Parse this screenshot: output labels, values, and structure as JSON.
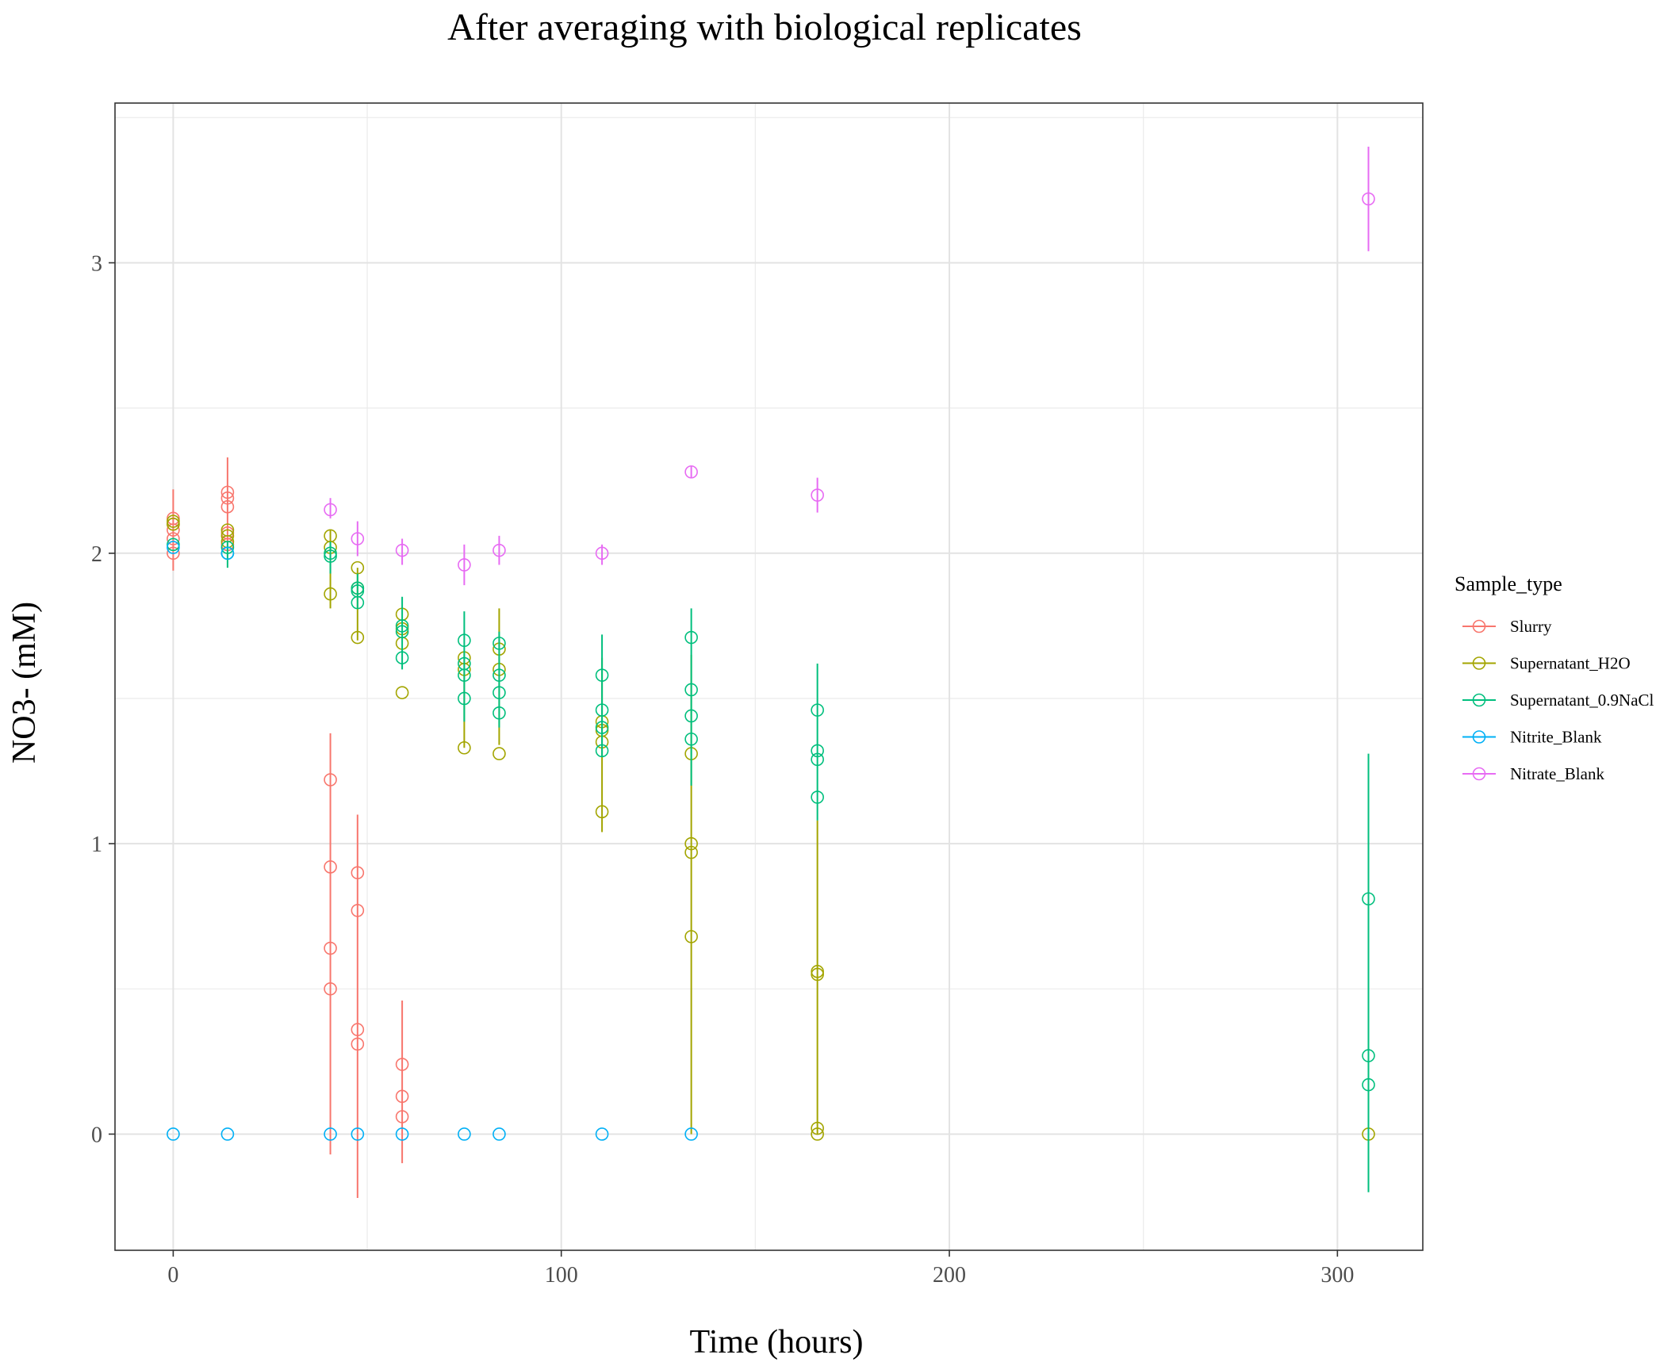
{
  "chart_data": {
    "type": "scatter",
    "title": "After averaging with biological replicates",
    "xlabel": "Time (hours)",
    "ylabel": "NO3- (mM)",
    "xlim": [
      -15,
      322
    ],
    "ylim": [
      -0.4,
      3.55
    ],
    "x_ticks": [
      0,
      100,
      200,
      300
    ],
    "x_tick_labels": [
      "0",
      "100",
      "200",
      "300"
    ],
    "x_minor_ticks": [
      50,
      150,
      250
    ],
    "y_ticks": [
      0,
      1,
      2,
      3
    ],
    "y_tick_labels": [
      "0",
      "1",
      "2",
      "3"
    ],
    "y_minor_ticks": [
      0.5,
      1.5,
      2.5,
      3.5
    ],
    "grid": true,
    "legend_title": "Sample_type",
    "legend_position": "right",
    "series": [
      {
        "name": "Slurry",
        "color": "#F8766D",
        "points": [
          {
            "x": 0,
            "y": 2.0
          },
          {
            "x": 0,
            "y": 2.05
          },
          {
            "x": 0,
            "y": 2.08
          },
          {
            "x": 0,
            "y": 2.1
          },
          {
            "x": 0,
            "y": 2.12
          },
          {
            "x": 14,
            "y": 2.03
          },
          {
            "x": 14,
            "y": 2.07
          },
          {
            "x": 14,
            "y": 2.16
          },
          {
            "x": 14,
            "y": 2.19
          },
          {
            "x": 14,
            "y": 2.21
          },
          {
            "x": 40.5,
            "y": 1.22
          },
          {
            "x": 40.5,
            "y": 0.92
          },
          {
            "x": 40.5,
            "y": 0.64
          },
          {
            "x": 40.5,
            "y": 0.5
          },
          {
            "x": 47.5,
            "y": 0.9
          },
          {
            "x": 47.5,
            "y": 0.77
          },
          {
            "x": 47.5,
            "y": 0.36
          },
          {
            "x": 47.5,
            "y": 0.31
          },
          {
            "x": 59,
            "y": 0.24
          },
          {
            "x": 59,
            "y": 0.13
          },
          {
            "x": 59,
            "y": 0.06
          }
        ],
        "errorbars": [
          {
            "x": 0,
            "low": 1.94,
            "high": 2.22
          },
          {
            "x": 14,
            "low": 2.0,
            "high": 2.33
          },
          {
            "x": 40.5,
            "low": -0.07,
            "high": 1.38
          },
          {
            "x": 47.5,
            "low": -0.22,
            "high": 1.1
          },
          {
            "x": 59,
            "low": -0.1,
            "high": 0.46
          }
        ]
      },
      {
        "name": "Supernatant_H2O",
        "color": "#A3A500",
        "points": [
          {
            "x": 0,
            "y": 2.1
          },
          {
            "x": 0,
            "y": 2.11
          },
          {
            "x": 14,
            "y": 2.04
          },
          {
            "x": 14,
            "y": 2.06
          },
          {
            "x": 14,
            "y": 2.08
          },
          {
            "x": 40.5,
            "y": 2.06
          },
          {
            "x": 40.5,
            "y": 2.02
          },
          {
            "x": 40.5,
            "y": 1.86
          },
          {
            "x": 47.5,
            "y": 1.95
          },
          {
            "x": 47.5,
            "y": 1.88
          },
          {
            "x": 47.5,
            "y": 1.71
          },
          {
            "x": 59,
            "y": 1.79
          },
          {
            "x": 59,
            "y": 1.74
          },
          {
            "x": 59,
            "y": 1.69
          },
          {
            "x": 59,
            "y": 1.52
          },
          {
            "x": 75,
            "y": 1.64
          },
          {
            "x": 75,
            "y": 1.6
          },
          {
            "x": 75,
            "y": 1.33
          },
          {
            "x": 84,
            "y": 1.67
          },
          {
            "x": 84,
            "y": 1.6
          },
          {
            "x": 84,
            "y": 1.31
          },
          {
            "x": 110.5,
            "y": 1.42
          },
          {
            "x": 110.5,
            "y": 1.39
          },
          {
            "x": 110.5,
            "y": 1.35
          },
          {
            "x": 110.5,
            "y": 1.11
          },
          {
            "x": 133.5,
            "y": 1.31
          },
          {
            "x": 133.5,
            "y": 1.0
          },
          {
            "x": 133.5,
            "y": 0.97
          },
          {
            "x": 133.5,
            "y": 0.68
          },
          {
            "x": 166,
            "y": 0.55
          },
          {
            "x": 166,
            "y": 0.56
          },
          {
            "x": 166,
            "y": 0.02
          },
          {
            "x": 166,
            "y": 0.0
          },
          {
            "x": 308,
            "y": 0.0
          }
        ],
        "errorbars": [
          {
            "x": 40.5,
            "low": 1.81,
            "high": 2.08
          },
          {
            "x": 47.5,
            "low": 1.7,
            "high": 1.95
          },
          {
            "x": 75,
            "low": 1.33,
            "high": 1.66
          },
          {
            "x": 84,
            "low": 1.34,
            "high": 1.81
          },
          {
            "x": 110.5,
            "low": 1.04,
            "high": 1.64
          },
          {
            "x": 133.5,
            "low": 0.0,
            "high": 1.65
          },
          {
            "x": 166,
            "low": 0.0,
            "high": 1.08
          }
        ]
      },
      {
        "name": "Supernatant_0.9NaCl",
        "color": "#00BF7D",
        "points": [
          {
            "x": 0,
            "y": 2.03
          },
          {
            "x": 14,
            "y": 2.02
          },
          {
            "x": 14,
            "y": 2.0
          },
          {
            "x": 40.5,
            "y": 2.0
          },
          {
            "x": 40.5,
            "y": 1.99
          },
          {
            "x": 47.5,
            "y": 1.88
          },
          {
            "x": 47.5,
            "y": 1.87
          },
          {
            "x": 47.5,
            "y": 1.83
          },
          {
            "x": 59,
            "y": 1.75
          },
          {
            "x": 59,
            "y": 1.73
          },
          {
            "x": 59,
            "y": 1.64
          },
          {
            "x": 75,
            "y": 1.7
          },
          {
            "x": 75,
            "y": 1.62
          },
          {
            "x": 75,
            "y": 1.58
          },
          {
            "x": 75,
            "y": 1.5
          },
          {
            "x": 84,
            "y": 1.69
          },
          {
            "x": 84,
            "y": 1.58
          },
          {
            "x": 84,
            "y": 1.52
          },
          {
            "x": 84,
            "y": 1.45
          },
          {
            "x": 110.5,
            "y": 1.58
          },
          {
            "x": 110.5,
            "y": 1.46
          },
          {
            "x": 110.5,
            "y": 1.4
          },
          {
            "x": 110.5,
            "y": 1.32
          },
          {
            "x": 133.5,
            "y": 1.71
          },
          {
            "x": 133.5,
            "y": 1.53
          },
          {
            "x": 133.5,
            "y": 1.44
          },
          {
            "x": 133.5,
            "y": 1.36
          },
          {
            "x": 166,
            "y": 1.46
          },
          {
            "x": 166,
            "y": 1.32
          },
          {
            "x": 166,
            "y": 1.29
          },
          {
            "x": 166,
            "y": 1.16
          },
          {
            "x": 308,
            "y": 0.81
          },
          {
            "x": 308,
            "y": 0.27
          },
          {
            "x": 308,
            "y": 0.17
          }
        ],
        "errorbars": [
          {
            "x": 14,
            "low": 1.95,
            "high": 2.04
          },
          {
            "x": 40.5,
            "low": 1.93,
            "high": 2.04
          },
          {
            "x": 47.5,
            "low": 1.81,
            "high": 1.93
          },
          {
            "x": 59,
            "low": 1.6,
            "high": 1.85
          },
          {
            "x": 75,
            "low": 1.42,
            "high": 1.8
          },
          {
            "x": 84,
            "low": 1.4,
            "high": 1.73
          },
          {
            "x": 110.5,
            "low": 1.3,
            "high": 1.72
          },
          {
            "x": 133.5,
            "low": 1.2,
            "high": 1.81
          },
          {
            "x": 166,
            "low": 1.08,
            "high": 1.62
          },
          {
            "x": 308,
            "low": -0.2,
            "high": 1.31
          }
        ]
      },
      {
        "name": "Nitrite_Blank",
        "color": "#00B0F6",
        "points": [
          {
            "x": 0,
            "y": 0.0
          },
          {
            "x": 0,
            "y": 2.02
          },
          {
            "x": 14,
            "y": 0.0
          },
          {
            "x": 14,
            "y": 2.0
          },
          {
            "x": 40.5,
            "y": 0.0
          },
          {
            "x": 47.5,
            "y": 0.0
          },
          {
            "x": 59,
            "y": 0.0
          },
          {
            "x": 75,
            "y": 0.0
          },
          {
            "x": 84,
            "y": 0.0
          },
          {
            "x": 110.5,
            "y": 0.0
          },
          {
            "x": 133.5,
            "y": 0.0
          }
        ],
        "errorbars": []
      },
      {
        "name": "Nitrate_Blank",
        "color": "#E76BF3",
        "points": [
          {
            "x": 40.5,
            "y": 2.15
          },
          {
            "x": 47.5,
            "y": 2.05
          },
          {
            "x": 59,
            "y": 2.01
          },
          {
            "x": 75,
            "y": 1.96
          },
          {
            "x": 84,
            "y": 2.01
          },
          {
            "x": 110.5,
            "y": 2.0
          },
          {
            "x": 133.5,
            "y": 2.28
          },
          {
            "x": 166,
            "y": 2.2
          },
          {
            "x": 308,
            "y": 3.22
          }
        ],
        "errorbars": [
          {
            "x": 40.5,
            "low": 2.12,
            "high": 2.19
          },
          {
            "x": 47.5,
            "low": 1.99,
            "high": 2.11
          },
          {
            "x": 59,
            "low": 1.96,
            "high": 2.05
          },
          {
            "x": 75,
            "low": 1.89,
            "high": 2.03
          },
          {
            "x": 84,
            "low": 1.96,
            "high": 2.06
          },
          {
            "x": 110.5,
            "low": 1.96,
            "high": 2.03
          },
          {
            "x": 133.5,
            "low": 2.26,
            "high": 2.3
          },
          {
            "x": 166,
            "low": 2.14,
            "high": 2.26
          },
          {
            "x": 308,
            "low": 3.04,
            "high": 3.4
          }
        ]
      }
    ]
  }
}
